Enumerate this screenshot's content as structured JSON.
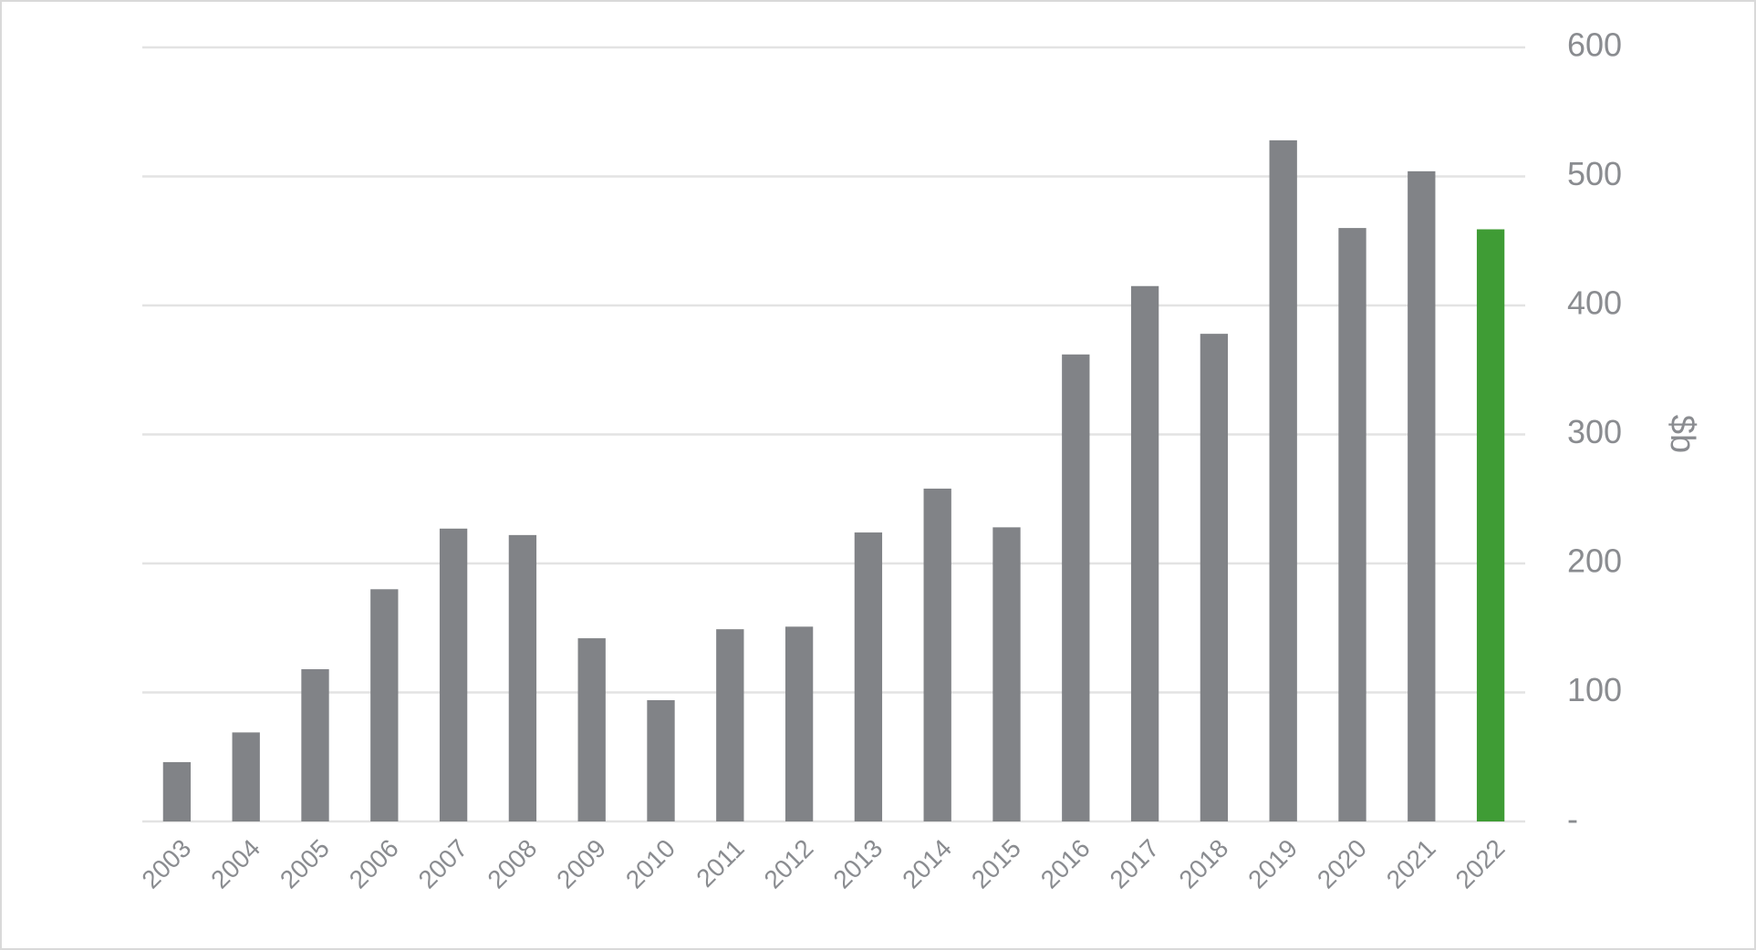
{
  "chart_data": {
    "type": "bar",
    "categories": [
      "2003",
      "2004",
      "2005",
      "2006",
      "2007",
      "2008",
      "2009",
      "2010",
      "2011",
      "2012",
      "2013",
      "2014",
      "2015",
      "2016",
      "2017",
      "2018",
      "2019",
      "2020",
      "2021",
      "2022"
    ],
    "values": [
      46,
      69,
      118,
      180,
      227,
      222,
      142,
      94,
      149,
      151,
      224,
      258,
      228,
      362,
      415,
      378,
      528,
      460,
      504,
      459
    ],
    "colors": [
      "#818387",
      "#818387",
      "#818387",
      "#818387",
      "#818387",
      "#818387",
      "#818387",
      "#818387",
      "#818387",
      "#818387",
      "#818387",
      "#818387",
      "#818387",
      "#818387",
      "#818387",
      "#818387",
      "#818387",
      "#818387",
      "#818387",
      "#3f9c35"
    ],
    "y_label": "$b",
    "y_axis_side": "right",
    "ylim": [
      0,
      600
    ],
    "yticks": [
      {
        "value": 0,
        "label": "-"
      },
      100,
      200,
      300,
      400,
      500,
      600
    ],
    "grid": true
  }
}
